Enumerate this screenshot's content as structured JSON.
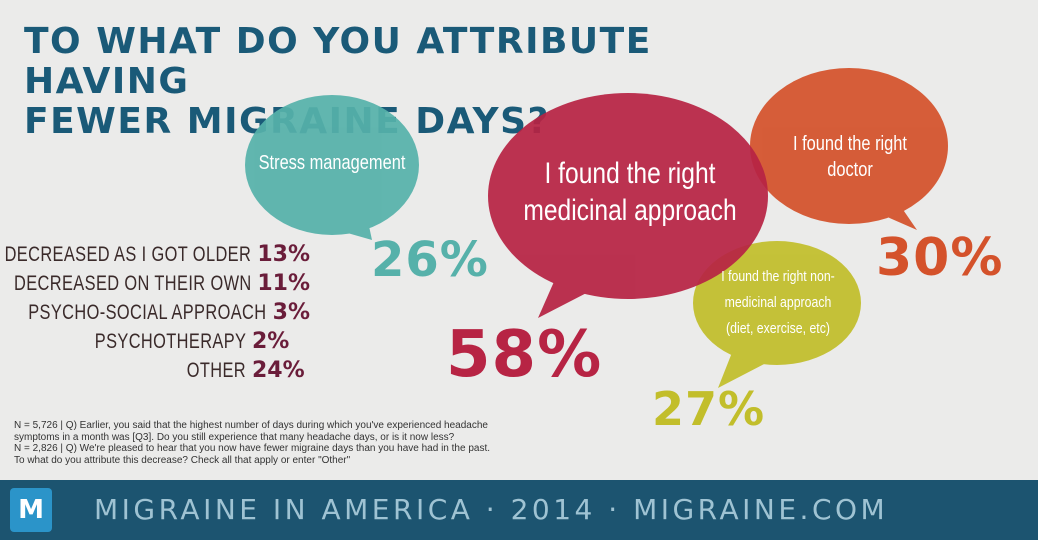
{
  "title_lines": [
    "TO WHAT DO YOU ATTRIBUTE HAVING",
    "FEWER MIGRAINE DAYS?"
  ],
  "colors": {
    "title": "#1a5a78",
    "teal": "#56b1aa",
    "crimson": "#b72444",
    "orange": "#d4522b",
    "olive": "#c2be2b",
    "other_values": "#6a1d3a",
    "footer_bg": "#1c5470",
    "footer_text": "#9fc3d3",
    "logo_bg": "#2b94c9"
  },
  "chart_data": {
    "type": "bar",
    "categories": [
      "I found the right medicinal approach",
      "I found the right doctor",
      "I found the right non-medicinal approach (diet, exercise, etc)",
      "Stress management",
      "Decreased as I got older",
      "Decreased on their own",
      "Psycho-social approach",
      "Psychotherapy",
      "Other"
    ],
    "values": [
      58,
      30,
      27,
      26,
      13,
      11,
      3,
      2,
      24
    ],
    "unit": "%",
    "bubbles": [
      {
        "key": "medicinal",
        "lines": [
          "I found the right",
          "medicinal approach"
        ],
        "value": "58%",
        "color": "#b72444"
      },
      {
        "key": "doctor",
        "lines": [
          "I found the right doctor"
        ],
        "value": "30%",
        "color": "#d4522b"
      },
      {
        "key": "nonmedicinal",
        "lines": [
          "I found the right non-",
          "medicinal approach",
          "(diet, exercise, etc)"
        ],
        "value": "27%",
        "color": "#c2be2b"
      },
      {
        "key": "stress",
        "lines": [
          "Stress management"
        ],
        "value": "26%",
        "color": "#56b1aa"
      }
    ],
    "other_items": [
      {
        "label": "DECREASED AS I GOT OLDER",
        "value": "13%"
      },
      {
        "label": "DECREASED ON THEIR OWN",
        "value": "11%"
      },
      {
        "label": "PSYCHO-SOCIAL APPROACH",
        "value": "3%"
      },
      {
        "label": "PSYCHOTHERAPY",
        "value": "2%"
      },
      {
        "label": "OTHER",
        "value": "24%"
      }
    ]
  },
  "footnote_lines": [
    "N = 5,726  |  Q) Earlier, you said that the highest number of days during which you've experienced  headache",
    "symptoms in a month was [Q3]. Do you still experience that many headache days, or is it now less?",
    "N = 2,826  |  Q) We're pleased to hear that you now have fewer migraine days than you have had in the past.",
    "To what do you attribute this decrease? Check all that apply or enter \"Other\""
  ],
  "footer": {
    "logo_letter": "M",
    "text": "MIGRAINE IN AMERICA · 2014 · MIGRAINE.COM"
  }
}
